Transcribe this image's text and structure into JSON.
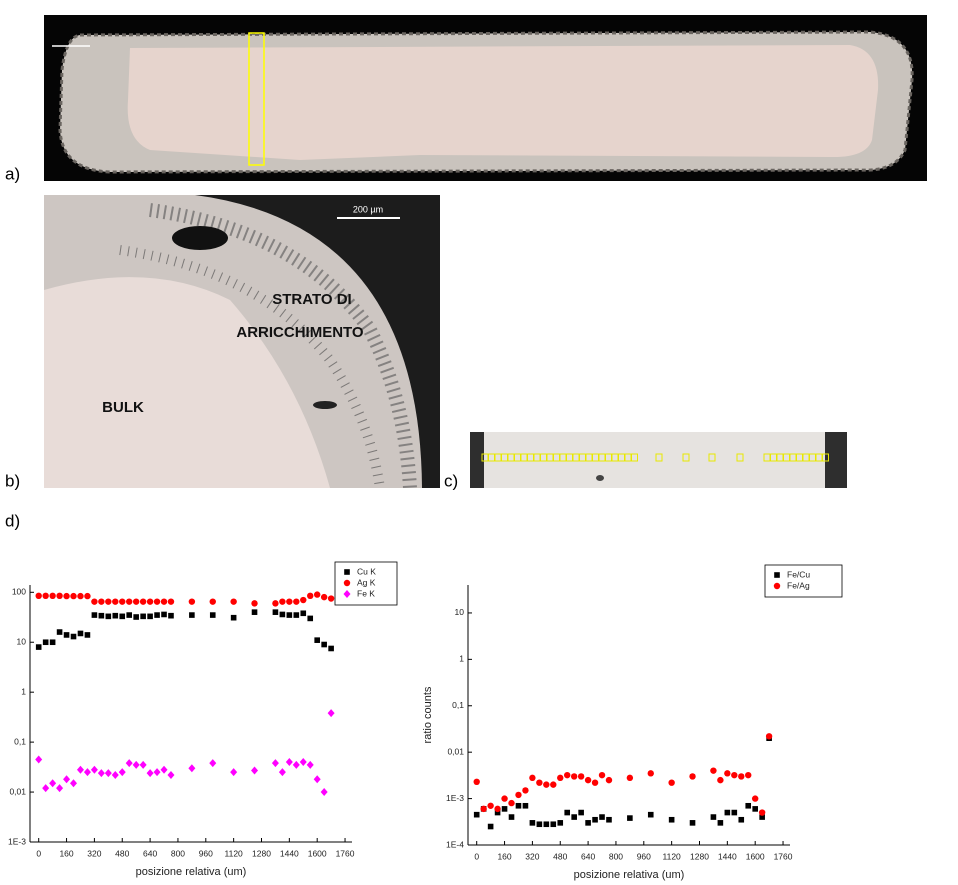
{
  "panels": {
    "a": {
      "label": "a)"
    },
    "b": {
      "label": "b)",
      "scale_bar": "200 µm",
      "annotations": [
        "STRATO DI",
        "ARRICCHIMENTO",
        "BULK"
      ]
    },
    "c": {
      "label": "c)"
    },
    "d": {
      "label": "d)"
    }
  },
  "chart_data": [
    {
      "type": "scatter",
      "log_y": true,
      "legend": "upper right",
      "xlabel": "posizione relativa (um)",
      "x": [
        0,
        40,
        80,
        120,
        160,
        200,
        240,
        280,
        320,
        360,
        400,
        440,
        480,
        520,
        560,
        600,
        640,
        680,
        720,
        760,
        880,
        1000,
        1120,
        1240,
        1360,
        1400,
        1440,
        1480,
        1520,
        1560,
        1600,
        1640,
        1680
      ],
      "series": [
        {
          "name": "Cu K",
          "color": "#000000",
          "marker": "square",
          "values": [
            8,
            10,
            10,
            16,
            14,
            13,
            15,
            14,
            35,
            34,
            33,
            34,
            33,
            35,
            32,
            33,
            33,
            35,
            36,
            34,
            35,
            35,
            31,
            40,
            40,
            36,
            35,
            35,
            38,
            30,
            11,
            9,
            7.5
          ]
        },
        {
          "name": "Ag K",
          "color": "#ff0000",
          "marker": "circle",
          "values": [
            85,
            85,
            85,
            85,
            84,
            84,
            84,
            84,
            65,
            65,
            65,
            65,
            65,
            65,
            65,
            65,
            65,
            65,
            65,
            65,
            65,
            65,
            65,
            60,
            60,
            65,
            65,
            65,
            70,
            85,
            90,
            80,
            75
          ]
        },
        {
          "name": "Fe K",
          "color": "#ff00ff",
          "marker": "diamond",
          "values": [
            0.045,
            0.012,
            0.015,
            0.012,
            0.018,
            0.015,
            0.028,
            0.025,
            0.028,
            0.024,
            0.024,
            0.022,
            0.025,
            0.038,
            0.035,
            0.035,
            0.024,
            0.025,
            0.028,
            0.022,
            0.03,
            0.038,
            0.025,
            0.027,
            0.038,
            0.025,
            0.04,
            0.035,
            0.04,
            0.035,
            0.018,
            0.01,
            0.38
          ]
        }
      ],
      "xlim": [
        -50,
        1800
      ],
      "ylim": [
        0.001,
        140
      ],
      "xticks": [
        0,
        160,
        320,
        480,
        640,
        800,
        960,
        1120,
        1280,
        1440,
        1600,
        1760
      ],
      "yticks": [
        {
          "value": 0.001,
          "label": "1E-3"
        },
        {
          "value": 0.01,
          "label": "0,01"
        },
        {
          "value": 0.1,
          "label": "0,1"
        },
        1,
        10,
        100
      ]
    },
    {
      "type": "scatter",
      "log_y": true,
      "legend": "upper right",
      "xlabel": "posizione relativa (um)",
      "ylabel": "ratio counts",
      "x": [
        0,
        40,
        80,
        120,
        160,
        200,
        240,
        280,
        320,
        360,
        400,
        440,
        480,
        520,
        560,
        600,
        640,
        680,
        720,
        760,
        880,
        1000,
        1120,
        1240,
        1360,
        1400,
        1440,
        1480,
        1520,
        1560,
        1600,
        1640,
        1680
      ],
      "series": [
        {
          "name": "Fe/Cu",
          "color": "#000000",
          "marker": "square",
          "values": [
            0.00045,
            0.0006,
            0.00025,
            0.0005,
            0.0006,
            0.0004,
            0.0007,
            0.0007,
            0.0003,
            0.00028,
            0.00028,
            0.00028,
            0.0003,
            0.0005,
            0.0004,
            0.0005,
            0.0003,
            0.00035,
            0.0004,
            0.00035,
            0.00038,
            0.00045,
            0.00035,
            0.0003,
            0.0004,
            0.0003,
            0.0005,
            0.0005,
            0.00035,
            0.0007,
            0.0006,
            0.0004,
            0.02
          ]
        },
        {
          "name": "Fe/Ag",
          "color": "#ff0000",
          "marker": "circle",
          "values": [
            0.0023,
            0.0006,
            0.0007,
            0.0006,
            0.001,
            0.0008,
            0.0012,
            0.0015,
            0.0028,
            0.0022,
            0.002,
            0.002,
            0.0028,
            0.0032,
            0.003,
            0.003,
            0.0025,
            0.0022,
            0.0032,
            0.0025,
            0.0028,
            0.0035,
            0.0022,
            0.003,
            0.004,
            0.0025,
            0.0035,
            0.0032,
            0.003,
            0.0032,
            0.001,
            0.0005,
            0.022
          ]
        }
      ],
      "xlim": [
        -50,
        1800
      ],
      "ylim": [
        0.0001,
        40
      ],
      "xticks": [
        0,
        160,
        320,
        480,
        640,
        800,
        960,
        1120,
        1280,
        1440,
        1600,
        1760
      ],
      "yticks": [
        {
          "value": 0.0001,
          "label": "1E-4"
        },
        {
          "value": 0.001,
          "label": "1E-3"
        },
        {
          "value": 0.01,
          "label": "0,01"
        },
        {
          "value": 0.1,
          "label": "0,1"
        },
        1,
        10
      ]
    }
  ]
}
